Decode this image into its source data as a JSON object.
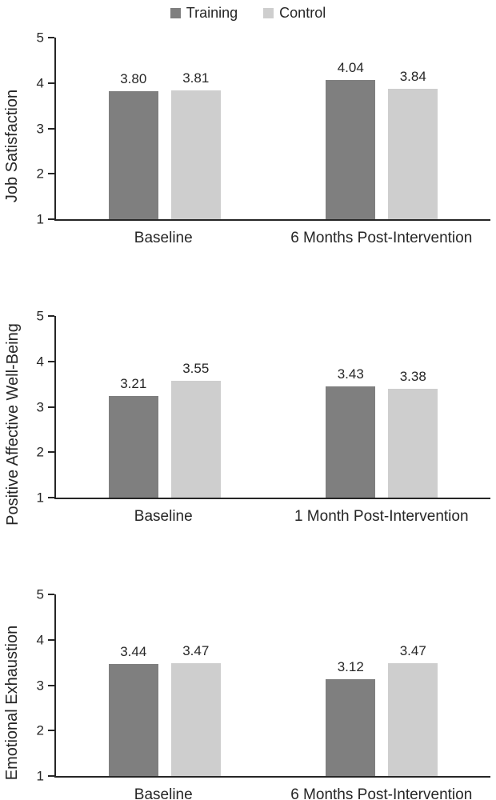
{
  "legend": {
    "items": [
      {
        "label": "Training",
        "color": "#7f7f7f"
      },
      {
        "label": "Control",
        "color": "#cecece"
      }
    ]
  },
  "chart_data": [
    {
      "type": "bar",
      "ylabel": "Job Satisfaction",
      "categories": [
        "Baseline",
        "6 Months Post-Intervention"
      ],
      "series": [
        {
          "name": "Training",
          "color": "#7f7f7f",
          "values": [
            3.8,
            4.04
          ],
          "labels": [
            "3.80",
            "4.04"
          ]
        },
        {
          "name": "Control",
          "color": "#cecece",
          "values": [
            3.81,
            3.84
          ],
          "labels": [
            "3.81",
            "3.84"
          ]
        }
      ],
      "ylim": [
        1,
        5
      ],
      "yticks": [
        1,
        2,
        3,
        4,
        5
      ],
      "grid": false,
      "legend_position": "top"
    },
    {
      "type": "bar",
      "ylabel": "Positive Affective Well-Being",
      "categories": [
        "Baseline",
        "1 Month Post-Intervention"
      ],
      "series": [
        {
          "name": "Training",
          "color": "#7f7f7f",
          "values": [
            3.21,
            3.43
          ],
          "labels": [
            "3.21",
            "3.43"
          ]
        },
        {
          "name": "Control",
          "color": "#cecece",
          "values": [
            3.55,
            3.38
          ],
          "labels": [
            "3.55",
            "3.38"
          ]
        }
      ],
      "ylim": [
        1,
        5
      ],
      "yticks": [
        1,
        2,
        3,
        4,
        5
      ],
      "grid": false,
      "legend_position": "none"
    },
    {
      "type": "bar",
      "ylabel": "Emotional Exhaustion",
      "categories": [
        "Baseline",
        "6 Months Post-Intervention"
      ],
      "series": [
        {
          "name": "Training",
          "color": "#7f7f7f",
          "values": [
            3.44,
            3.12
          ],
          "labels": [
            "3.44",
            "3.12"
          ]
        },
        {
          "name": "Control",
          "color": "#cecece",
          "values": [
            3.47,
            3.47
          ],
          "labels": [
            "3.47",
            "3.47"
          ]
        }
      ],
      "ylim": [
        1,
        5
      ],
      "yticks": [
        1,
        2,
        3,
        4,
        5
      ],
      "grid": false,
      "legend_position": "none"
    }
  ]
}
